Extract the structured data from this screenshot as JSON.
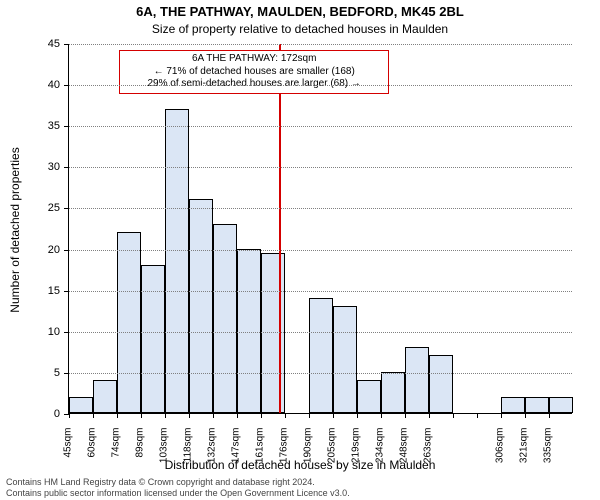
{
  "title_line1": "6A, THE PATHWAY, MAULDEN, BEDFORD, MK45 2BL",
  "title_line2": "Size of property relative to detached houses in Maulden",
  "ylabel": "Number of detached properties",
  "xlabel": "Distribution of detached houses by size in Maulden",
  "footer_line1": "Contains HM Land Registry data © Crown copyright and database right 2024.",
  "footer_line2": "Contains public sector information licensed under the Open Government Licence v3.0.",
  "annotation": {
    "line1": "6A THE PATHWAY: 172sqm",
    "line2": "← 71% of detached houses are smaller (168)",
    "line3": "29% of semi-detached houses are larger (68) →"
  },
  "chart": {
    "type": "histogram",
    "background_color": "#ffffff",
    "bar_fill": "#dbe6f5",
    "bar_border": "#000000",
    "grid_color": "#808080",
    "marker_line_color": "#d40000",
    "marker_value": 172,
    "ylim": [
      0,
      45
    ],
    "ytick_step": 5,
    "x_start": 45,
    "x_step": 14.5,
    "x_unit": "sqm",
    "categories": [
      "45sqm",
      "60sqm",
      "74sqm",
      "89sqm",
      "103sqm",
      "118sqm",
      "132sqm",
      "147sqm",
      "161sqm",
      "176sqm",
      "190sqm",
      "205sqm",
      "219sqm",
      "234sqm",
      "248sqm",
      "263sqm",
      "",
      "",
      "306sqm",
      "321sqm",
      "335sqm"
    ],
    "values": [
      2,
      4,
      22,
      18,
      37,
      26,
      23,
      20,
      19.5,
      null,
      14,
      13,
      4,
      5,
      8,
      7,
      null,
      null,
      2,
      2,
      2
    ],
    "title_fontsize": 13,
    "subtitle_fontsize": 12,
    "axis_label_fontsize": 12,
    "tick_fontsize": 11,
    "xtick_fontsize": 10,
    "annotation_fontsize": 10
  }
}
